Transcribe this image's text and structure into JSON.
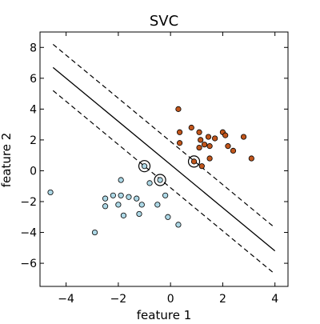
{
  "chart_data": {
    "type": "scatter",
    "title": "SVC",
    "xlabel": "feature 1",
    "ylabel": "feature 2",
    "xlim": [
      -5,
      4.5
    ],
    "ylim": [
      -7.5,
      9
    ],
    "xticks": [
      -4,
      -2,
      0,
      2,
      4
    ],
    "yticks": [
      -6,
      -4,
      -2,
      0,
      2,
      4,
      6,
      8
    ],
    "grid": false,
    "colors": {
      "class_0_fill": "#add8e6",
      "class_1_fill": "#c1561c",
      "marker_edge": "#000000",
      "line": "#000000"
    },
    "series": [
      {
        "class": 0,
        "points": [
          [
            -4.6,
            -1.4
          ],
          [
            -2.9,
            -4.0
          ],
          [
            -2.5,
            -1.8
          ],
          [
            -2.5,
            -2.3
          ],
          [
            -2.2,
            -1.6
          ],
          [
            -2.0,
            -2.2
          ],
          [
            -1.9,
            -0.6
          ],
          [
            -1.9,
            -1.6
          ],
          [
            -1.8,
            -2.9
          ],
          [
            -1.6,
            -1.7
          ],
          [
            -1.3,
            -1.8
          ],
          [
            -1.2,
            -2.8
          ],
          [
            -1.1,
            -2.2
          ],
          [
            -0.8,
            -0.8
          ],
          [
            -0.5,
            -2.2
          ],
          [
            -0.2,
            -1.6
          ],
          [
            -0.1,
            -3.0
          ],
          [
            0.3,
            -3.5
          ],
          [
            -1.0,
            0.3
          ],
          [
            -0.4,
            -0.6
          ]
        ]
      },
      {
        "class": 1,
        "points": [
          [
            0.3,
            4.0
          ],
          [
            0.35,
            2.5
          ],
          [
            0.35,
            1.8
          ],
          [
            0.8,
            2.8
          ],
          [
            1.1,
            2.5
          ],
          [
            1.1,
            1.5
          ],
          [
            1.15,
            2.0
          ],
          [
            1.2,
            0.3
          ],
          [
            1.3,
            1.7
          ],
          [
            1.45,
            2.2
          ],
          [
            1.5,
            0.8
          ],
          [
            1.5,
            1.6
          ],
          [
            1.7,
            2.1
          ],
          [
            2.0,
            2.5
          ],
          [
            2.2,
            1.6
          ],
          [
            2.1,
            2.3
          ],
          [
            2.4,
            1.3
          ],
          [
            2.8,
            2.2
          ],
          [
            3.1,
            0.8
          ],
          [
            0.9,
            0.6
          ]
        ]
      }
    ],
    "support_vectors": [
      [
        -1.0,
        0.3
      ],
      [
        -0.4,
        -0.6
      ],
      [
        0.9,
        0.6
      ]
    ],
    "decision_boundary": {
      "x": [
        -4.5,
        4.0
      ],
      "y": [
        6.7,
        -5.2
      ]
    },
    "margins": [
      {
        "x": [
          -4.5,
          4.0
        ],
        "y": [
          8.2,
          -3.7
        ]
      },
      {
        "x": [
          -4.5,
          4.0
        ],
        "y": [
          5.2,
          -6.7
        ]
      }
    ]
  }
}
